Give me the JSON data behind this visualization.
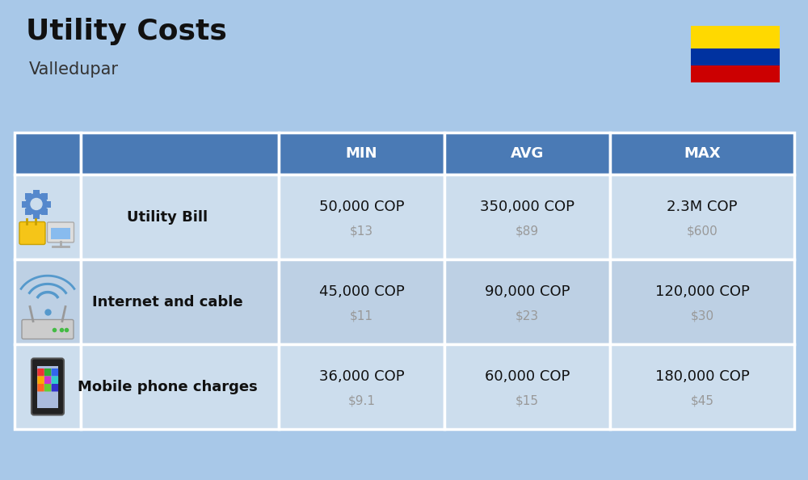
{
  "title": "Utility Costs",
  "subtitle": "Valledupar",
  "background_color": "#a8c8e8",
  "header_bg_color": "#4a7ab5",
  "header_text_color": "#ffffff",
  "row_bg_color_1": "#ccdded",
  "row_bg_color_2": "#bdd0e4",
  "table_line_color": "#ffffff",
  "col_headers": [
    "MIN",
    "AVG",
    "MAX"
  ],
  "rows": [
    {
      "label": "Utility Bill",
      "min_cop": "50,000 COP",
      "min_usd": "$13",
      "avg_cop": "350,000 COP",
      "avg_usd": "$89",
      "max_cop": "2.3M COP",
      "max_usd": "$600"
    },
    {
      "label": "Internet and cable",
      "min_cop": "45,000 COP",
      "min_usd": "$11",
      "avg_cop": "90,000 COP",
      "avg_usd": "$23",
      "max_cop": "120,000 COP",
      "max_usd": "$30"
    },
    {
      "label": "Mobile phone charges",
      "min_cop": "36,000 COP",
      "min_usd": "$9.1",
      "avg_cop": "60,000 COP",
      "avg_usd": "$15",
      "max_cop": "180,000 COP",
      "max_usd": "$45"
    }
  ],
  "flag_colors": [
    "#ffd900",
    "#0032a0",
    "#cc0001"
  ],
  "title_fontsize": 26,
  "subtitle_fontsize": 15,
  "header_fontsize": 13,
  "label_fontsize": 13,
  "value_fontsize": 13,
  "usd_fontsize": 11,
  "usd_color": "#999999"
}
